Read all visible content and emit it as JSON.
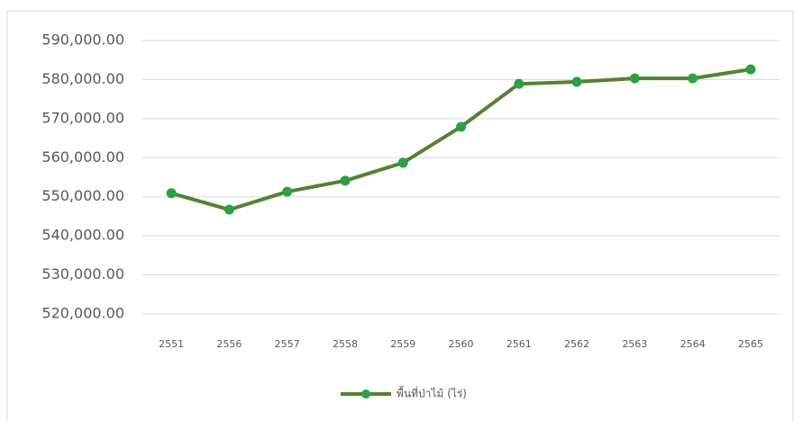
{
  "chart_data": {
    "type": "line",
    "categories": [
      "2551",
      "2556",
      "2557",
      "2558",
      "2559",
      "2560",
      "2561",
      "2562",
      "2563",
      "2564",
      "2565"
    ],
    "series": [
      {
        "name": "พื้นที่ป่าไม้ (ไร่)",
        "color": "#548235",
        "marker_color": "#2ea043",
        "values": [
          550900,
          546700,
          551300,
          554100,
          558700,
          567900,
          578900,
          579400,
          580300,
          580300,
          582600
        ]
      }
    ],
    "ylim": [
      520000,
      590000
    ],
    "yticks": [
      {
        "value": 520000,
        "label": "520,000.00"
      },
      {
        "value": 530000,
        "label": "530,000.00"
      },
      {
        "value": 540000,
        "label": "540,000.00"
      },
      {
        "value": 550000,
        "label": "550,000.00"
      },
      {
        "value": 560000,
        "label": "560,000.00"
      },
      {
        "value": 570000,
        "label": "570,000.00"
      },
      {
        "value": 580000,
        "label": "580,000.00"
      },
      {
        "value": 590000,
        "label": "590,000.00"
      }
    ],
    "grid": true,
    "legend": "bottom"
  }
}
